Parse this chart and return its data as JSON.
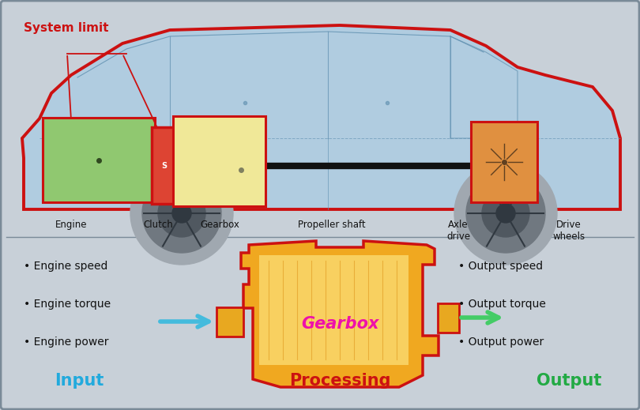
{
  "bg_color": "#c8d0d8",
  "car_body_color": "#b0cce0",
  "car_line_color": "#6090b0",
  "red_border": "#cc1111",
  "engine_box_color": "#90c870",
  "clutch_box_color": "#dd3322",
  "gearbox_box_color": "#f0e898",
  "axle_box_color": "#e09040",
  "shaft_color": "#111111",
  "system_limit_text": "System limit",
  "system_limit_color": "#cc1111",
  "labels_car": [
    "Engine",
    "Clutch",
    "Gearbox",
    "Propeller shaft",
    "Axle\ndrive",
    "Drive\nwheels"
  ],
  "input_bullets": [
    "Engine speed",
    "Engine torque",
    "Engine power"
  ],
  "output_bullets": [
    "Output speed",
    "Output torque",
    "Output power"
  ],
  "input_label": "Input",
  "processing_label": "Processing",
  "output_label": "Output",
  "input_color": "#22aadd",
  "processing_color": "#cc1111",
  "output_color": "#22aa44",
  "gearbox_label": "Gearbox",
  "gearbox_label_color": "#ee11aa",
  "arrow_input_color": "#44bbdd",
  "arrow_output_color": "#44cc66",
  "wheel_outer": "#a0a8b0",
  "wheel_mid": "#606878",
  "wheel_inner": "#303840",
  "text_color": "#111111",
  "border_color": "#7a8a98"
}
